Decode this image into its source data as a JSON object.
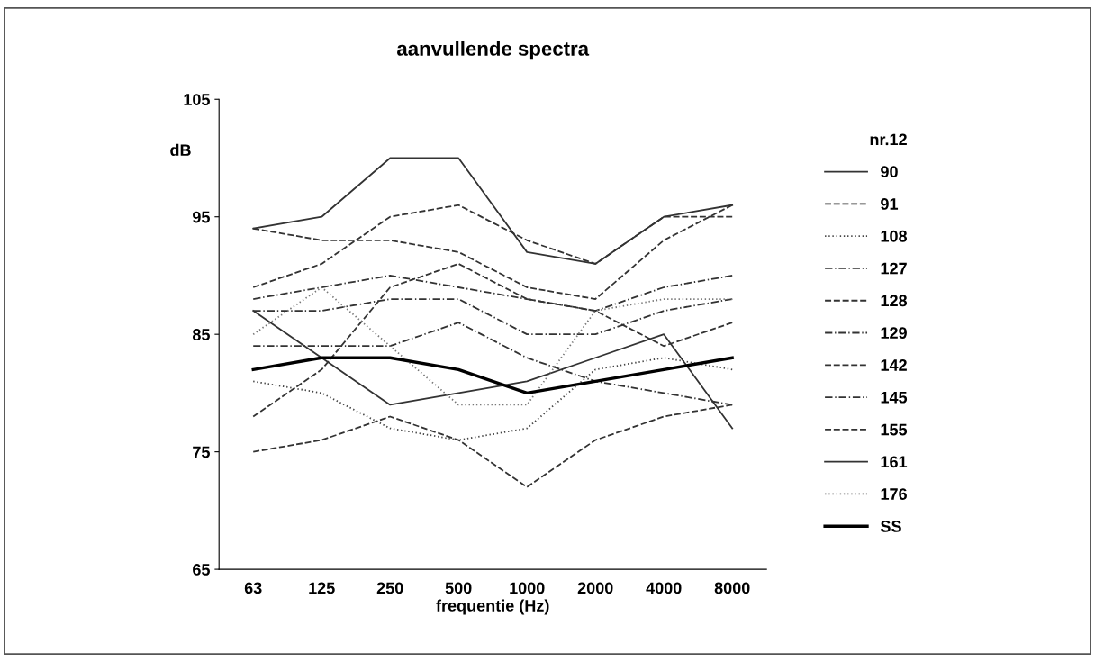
{
  "chart_data": {
    "type": "line",
    "title": "aanvullende spectra",
    "xlabel": "frequentie (Hz)",
    "ylabel": "dB",
    "legend_title": "nr.12",
    "categories": [
      "63",
      "125",
      "250",
      "500",
      "1000",
      "2000",
      "4000",
      "8000"
    ],
    "ylim": [
      65,
      105
    ],
    "yticks": [
      65,
      75,
      85,
      95,
      105
    ],
    "grid": false,
    "legend": "right",
    "marker": "none",
    "series": [
      {
        "name": "90",
        "color": "#333333",
        "line_style": "solid",
        "values": [
          94,
          95,
          100,
          100,
          92,
          91,
          95,
          96
        ]
      },
      {
        "name": "91",
        "color": "#333333",
        "line_style": "dashed",
        "values": [
          94,
          93,
          93,
          92,
          89,
          88,
          93,
          96
        ]
      },
      {
        "name": "108",
        "color": "#444444",
        "line_style": "dotted",
        "values": [
          81,
          80,
          77,
          76,
          77,
          82,
          83,
          82
        ]
      },
      {
        "name": "127",
        "color": "#333333",
        "line_style": "dashdot",
        "values": [
          88,
          89,
          90,
          89,
          88,
          87,
          89,
          90
        ]
      },
      {
        "name": "128",
        "color": "#333333",
        "line_style": "dashed",
        "values": [
          89,
          91,
          95,
          96,
          93,
          91,
          95,
          95
        ]
      },
      {
        "name": "129",
        "color": "#333333",
        "line_style": "dashdot",
        "values": [
          84,
          84,
          84,
          86,
          83,
          81,
          80,
          79
        ]
      },
      {
        "name": "142",
        "color": "#333333",
        "line_style": "dashed",
        "values": [
          75,
          76,
          78,
          76,
          72,
          76,
          78,
          79
        ]
      },
      {
        "name": "145",
        "color": "#333333",
        "line_style": "dashdot",
        "values": [
          87,
          87,
          88,
          88,
          85,
          85,
          87,
          88
        ]
      },
      {
        "name": "155",
        "color": "#333333",
        "line_style": "dashed",
        "values": [
          78,
          82,
          89,
          91,
          88,
          87,
          84,
          86
        ]
      },
      {
        "name": "161",
        "color": "#333333",
        "line_style": "solid",
        "values": [
          87,
          83,
          79,
          80,
          81,
          83,
          85,
          77
        ]
      },
      {
        "name": "176",
        "color": "#777777",
        "line_style": "dotted",
        "values": [
          85,
          89,
          84,
          79,
          79,
          87,
          88,
          88
        ]
      },
      {
        "name": "SS",
        "color": "#000000",
        "line_style": "solid",
        "values": [
          82,
          83,
          83,
          82,
          80,
          81,
          82,
          83
        ]
      }
    ]
  }
}
